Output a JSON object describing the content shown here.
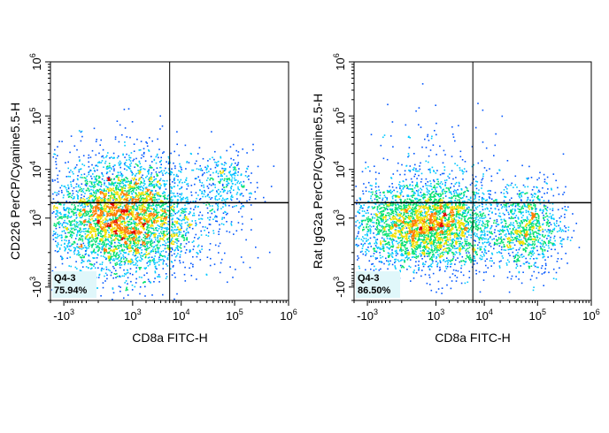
{
  "chart_data": [
    {
      "type": "scatter",
      "xlabel": "CD8a FITC-H",
      "ylabel": "CD226 PerCP/Cyanine5.5-H",
      "x_scale": "biexponential",
      "y_scale": "biexponential",
      "xlim": [
        -2000,
        1000000
      ],
      "ylim": [
        -2000,
        1000000
      ],
      "x_ticks": [
        {
          "base": "-10",
          "exp": "3",
          "value": -1000
        },
        {
          "base": "10",
          "exp": "3",
          "value": 1000
        },
        {
          "base": "10",
          "exp": "4",
          "value": 10000
        },
        {
          "base": "10",
          "exp": "5",
          "value": 100000
        },
        {
          "base": "10",
          "exp": "6",
          "value": 1000000
        }
      ],
      "y_ticks": [
        {
          "base": "-10",
          "exp": "3",
          "value": -1000
        },
        {
          "base": "10",
          "exp": "3",
          "value": 1000
        },
        {
          "base": "10",
          "exp": "4",
          "value": 10000
        },
        {
          "base": "10",
          "exp": "5",
          "value": 100000
        },
        {
          "base": "10",
          "exp": "6",
          "value": 1000000
        }
      ],
      "quadrant_gate": {
        "x": 6000,
        "y": 2200
      },
      "gate_label": {
        "name": "Q4-3",
        "percent": "75.94%"
      },
      "populations": [
        {
          "center": [
            500,
            900
          ],
          "spread": [
            0.7,
            0.5
          ],
          "fraction": 0.74
        },
        {
          "center": [
            70000,
            5500
          ],
          "spread": [
            0.25,
            0.28
          ],
          "fraction": 0.06
        },
        {
          "center": [
            700,
            3500
          ],
          "spread": [
            0.8,
            0.55
          ],
          "fraction": 0.15
        },
        {
          "center": [
            3000,
            800
          ],
          "spread": [
            0.9,
            0.5
          ],
          "fraction": 0.05
        }
      ]
    },
    {
      "type": "scatter",
      "xlabel": "CD8a FITC-H",
      "ylabel": "Rat IgG2a PerCP/Cyanine5.5-H",
      "x_scale": "biexponential",
      "y_scale": "biexponential",
      "xlim": [
        -2000,
        1000000
      ],
      "ylim": [
        -2000,
        1000000
      ],
      "x_ticks": [
        {
          "base": "-10",
          "exp": "3",
          "value": -1000
        },
        {
          "base": "10",
          "exp": "3",
          "value": 1000
        },
        {
          "base": "10",
          "exp": "4",
          "value": 10000
        },
        {
          "base": "10",
          "exp": "5",
          "value": 100000
        },
        {
          "base": "10",
          "exp": "6",
          "value": 1000000
        }
      ],
      "y_ticks": [
        {
          "base": "-10",
          "exp": "3",
          "value": -1000
        },
        {
          "base": "10",
          "exp": "3",
          "value": 1000
        },
        {
          "base": "10",
          "exp": "4",
          "value": 10000
        },
        {
          "base": "10",
          "exp": "5",
          "value": 100000
        },
        {
          "base": "10",
          "exp": "6",
          "value": 1000000
        }
      ],
      "quadrant_gate": {
        "x": 6000,
        "y": 2200
      },
      "gate_label": {
        "name": "Q4-3",
        "percent": "86.50%"
      },
      "populations": [
        {
          "center": [
            500,
            700
          ],
          "spread": [
            0.7,
            0.4
          ],
          "fraction": 0.72
        },
        {
          "center": [
            70000,
            500
          ],
          "spread": [
            0.3,
            0.4
          ],
          "fraction": 0.18
        },
        {
          "center": [
            4000,
            800
          ],
          "spread": [
            0.9,
            0.45
          ],
          "fraction": 0.06
        },
        {
          "center": [
            800,
            5000
          ],
          "spread": [
            0.6,
            0.7
          ],
          "fraction": 0.04
        }
      ]
    }
  ],
  "colors": {
    "density_scale": [
      "#0000cc",
      "#0055ff",
      "#00c8ff",
      "#00e070",
      "#f0e000",
      "#ff7a00",
      "#e00000"
    ],
    "gate_line": "#000000",
    "gate_label_bg": "#e0f7fa"
  }
}
